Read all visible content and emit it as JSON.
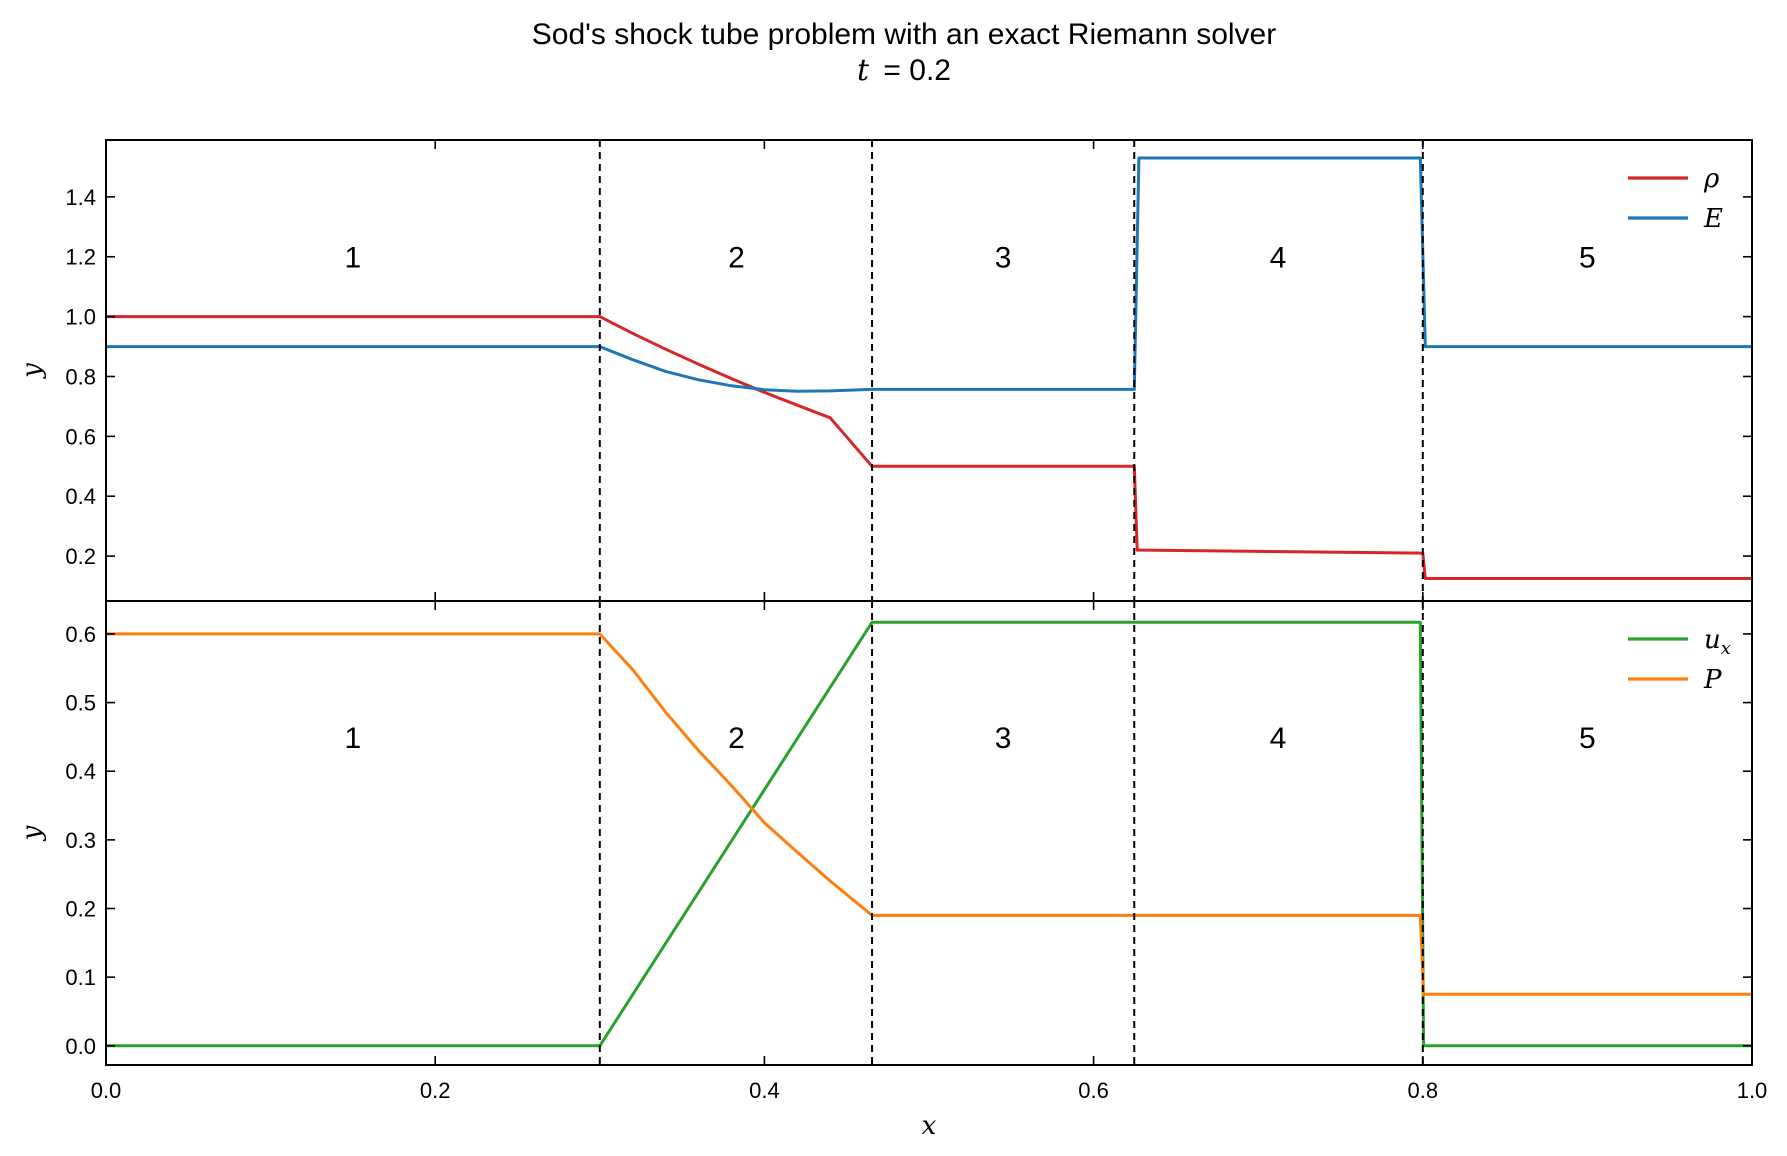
{
  "chart_data": {
    "type": "line",
    "title": "Sod's shock tube problem with an exact Riemann solver",
    "subtitle": "t = 0.2",
    "subtitle_var": "t",
    "subtitle_val": "= 0.2",
    "xlabel": "x",
    "xlim": [
      0.0,
      1.0
    ],
    "xticks": [
      "0.0",
      "0.2",
      "0.4",
      "0.6",
      "0.8",
      "1.0"
    ],
    "xtick_values": [
      0.0,
      0.2,
      0.4,
      0.6,
      0.8,
      1.0
    ],
    "boundaries": [
      0.3,
      0.4654,
      0.6247,
      0.8
    ],
    "colors": {
      "rho": "#d62728",
      "E": "#1f77b4",
      "ux": "#2ca02c",
      "P": "#ff7f0e"
    },
    "panels": [
      {
        "id": "top",
        "ylabel": "y",
        "ylim": [
          0.05,
          1.59
        ],
        "yticks": [
          "0.2",
          "0.4",
          "0.6",
          "0.8",
          "1.0",
          "1.2",
          "1.4"
        ],
        "ytick_values": [
          0.2,
          0.4,
          0.6,
          0.8,
          1.0,
          1.2,
          1.4
        ],
        "legend_position": "top-right",
        "region_label_y": 1.2,
        "region_labels": [
          {
            "text": "1",
            "x": 0.15
          },
          {
            "text": "2",
            "x": 0.383
          },
          {
            "text": "3",
            "x": 0.545
          },
          {
            "text": "4",
            "x": 0.712
          },
          {
            "text": "5",
            "x": 0.9
          }
        ],
        "series": [
          {
            "key": "rho",
            "name": "ρ",
            "x": [
              0.0,
              0.3,
              0.32,
              0.34,
              0.36,
              0.38,
              0.4,
              0.42,
              0.44,
              0.4654,
              0.6247,
              0.6265,
              0.8,
              0.8015,
              1.0
            ],
            "y": [
              1.0,
              1.0,
              0.944,
              0.891,
              0.841,
              0.793,
              0.747,
              0.704,
              0.662,
              0.5,
              0.5,
              0.22,
              0.21,
              0.125,
              0.125
            ]
          },
          {
            "key": "E",
            "name": "E",
            "x": [
              0.0,
              0.3,
              0.32,
              0.34,
              0.36,
              0.38,
              0.4,
              0.42,
              0.44,
              0.4654,
              0.6247,
              0.6275,
              0.7985,
              0.8015,
              1.0
            ],
            "y": [
              0.9,
              0.9,
              0.856,
              0.817,
              0.789,
              0.769,
              0.756,
              0.751,
              0.752,
              0.757,
              0.757,
              1.53,
              1.53,
              0.9,
              0.9
            ]
          }
        ]
      },
      {
        "id": "bottom",
        "ylabel": "y",
        "ylim": [
          -0.028,
          0.648
        ],
        "yticks": [
          "0.0",
          "0.1",
          "0.2",
          "0.3",
          "0.4",
          "0.5",
          "0.6"
        ],
        "ytick_values": [
          0.0,
          0.1,
          0.2,
          0.3,
          0.4,
          0.5,
          0.6
        ],
        "legend_position": "top-right",
        "region_label_y": 0.45,
        "region_labels": [
          {
            "text": "1",
            "x": 0.15
          },
          {
            "text": "2",
            "x": 0.383
          },
          {
            "text": "3",
            "x": 0.545
          },
          {
            "text": "4",
            "x": 0.712
          },
          {
            "text": "5",
            "x": 0.9
          }
        ],
        "series": [
          {
            "key": "ux",
            "name": "u",
            "name_sub": "x",
            "x": [
              0.0,
              0.3,
              0.4654,
              0.7985,
              0.8005,
              1.0
            ],
            "y": [
              0.0,
              0.0,
              0.617,
              0.617,
              0.0,
              0.0
            ]
          },
          {
            "key": "P",
            "name": "P",
            "x": [
              0.0,
              0.3,
              0.32,
              0.34,
              0.36,
              0.38,
              0.4,
              0.42,
              0.44,
              0.4654,
              0.7985,
              0.8005,
              1.0
            ],
            "y": [
              0.6,
              0.6,
              0.548,
              0.486,
              0.43,
              0.379,
              0.325,
              0.282,
              0.24,
              0.19,
              0.19,
              0.075,
              0.075
            ]
          }
        ]
      }
    ]
  }
}
